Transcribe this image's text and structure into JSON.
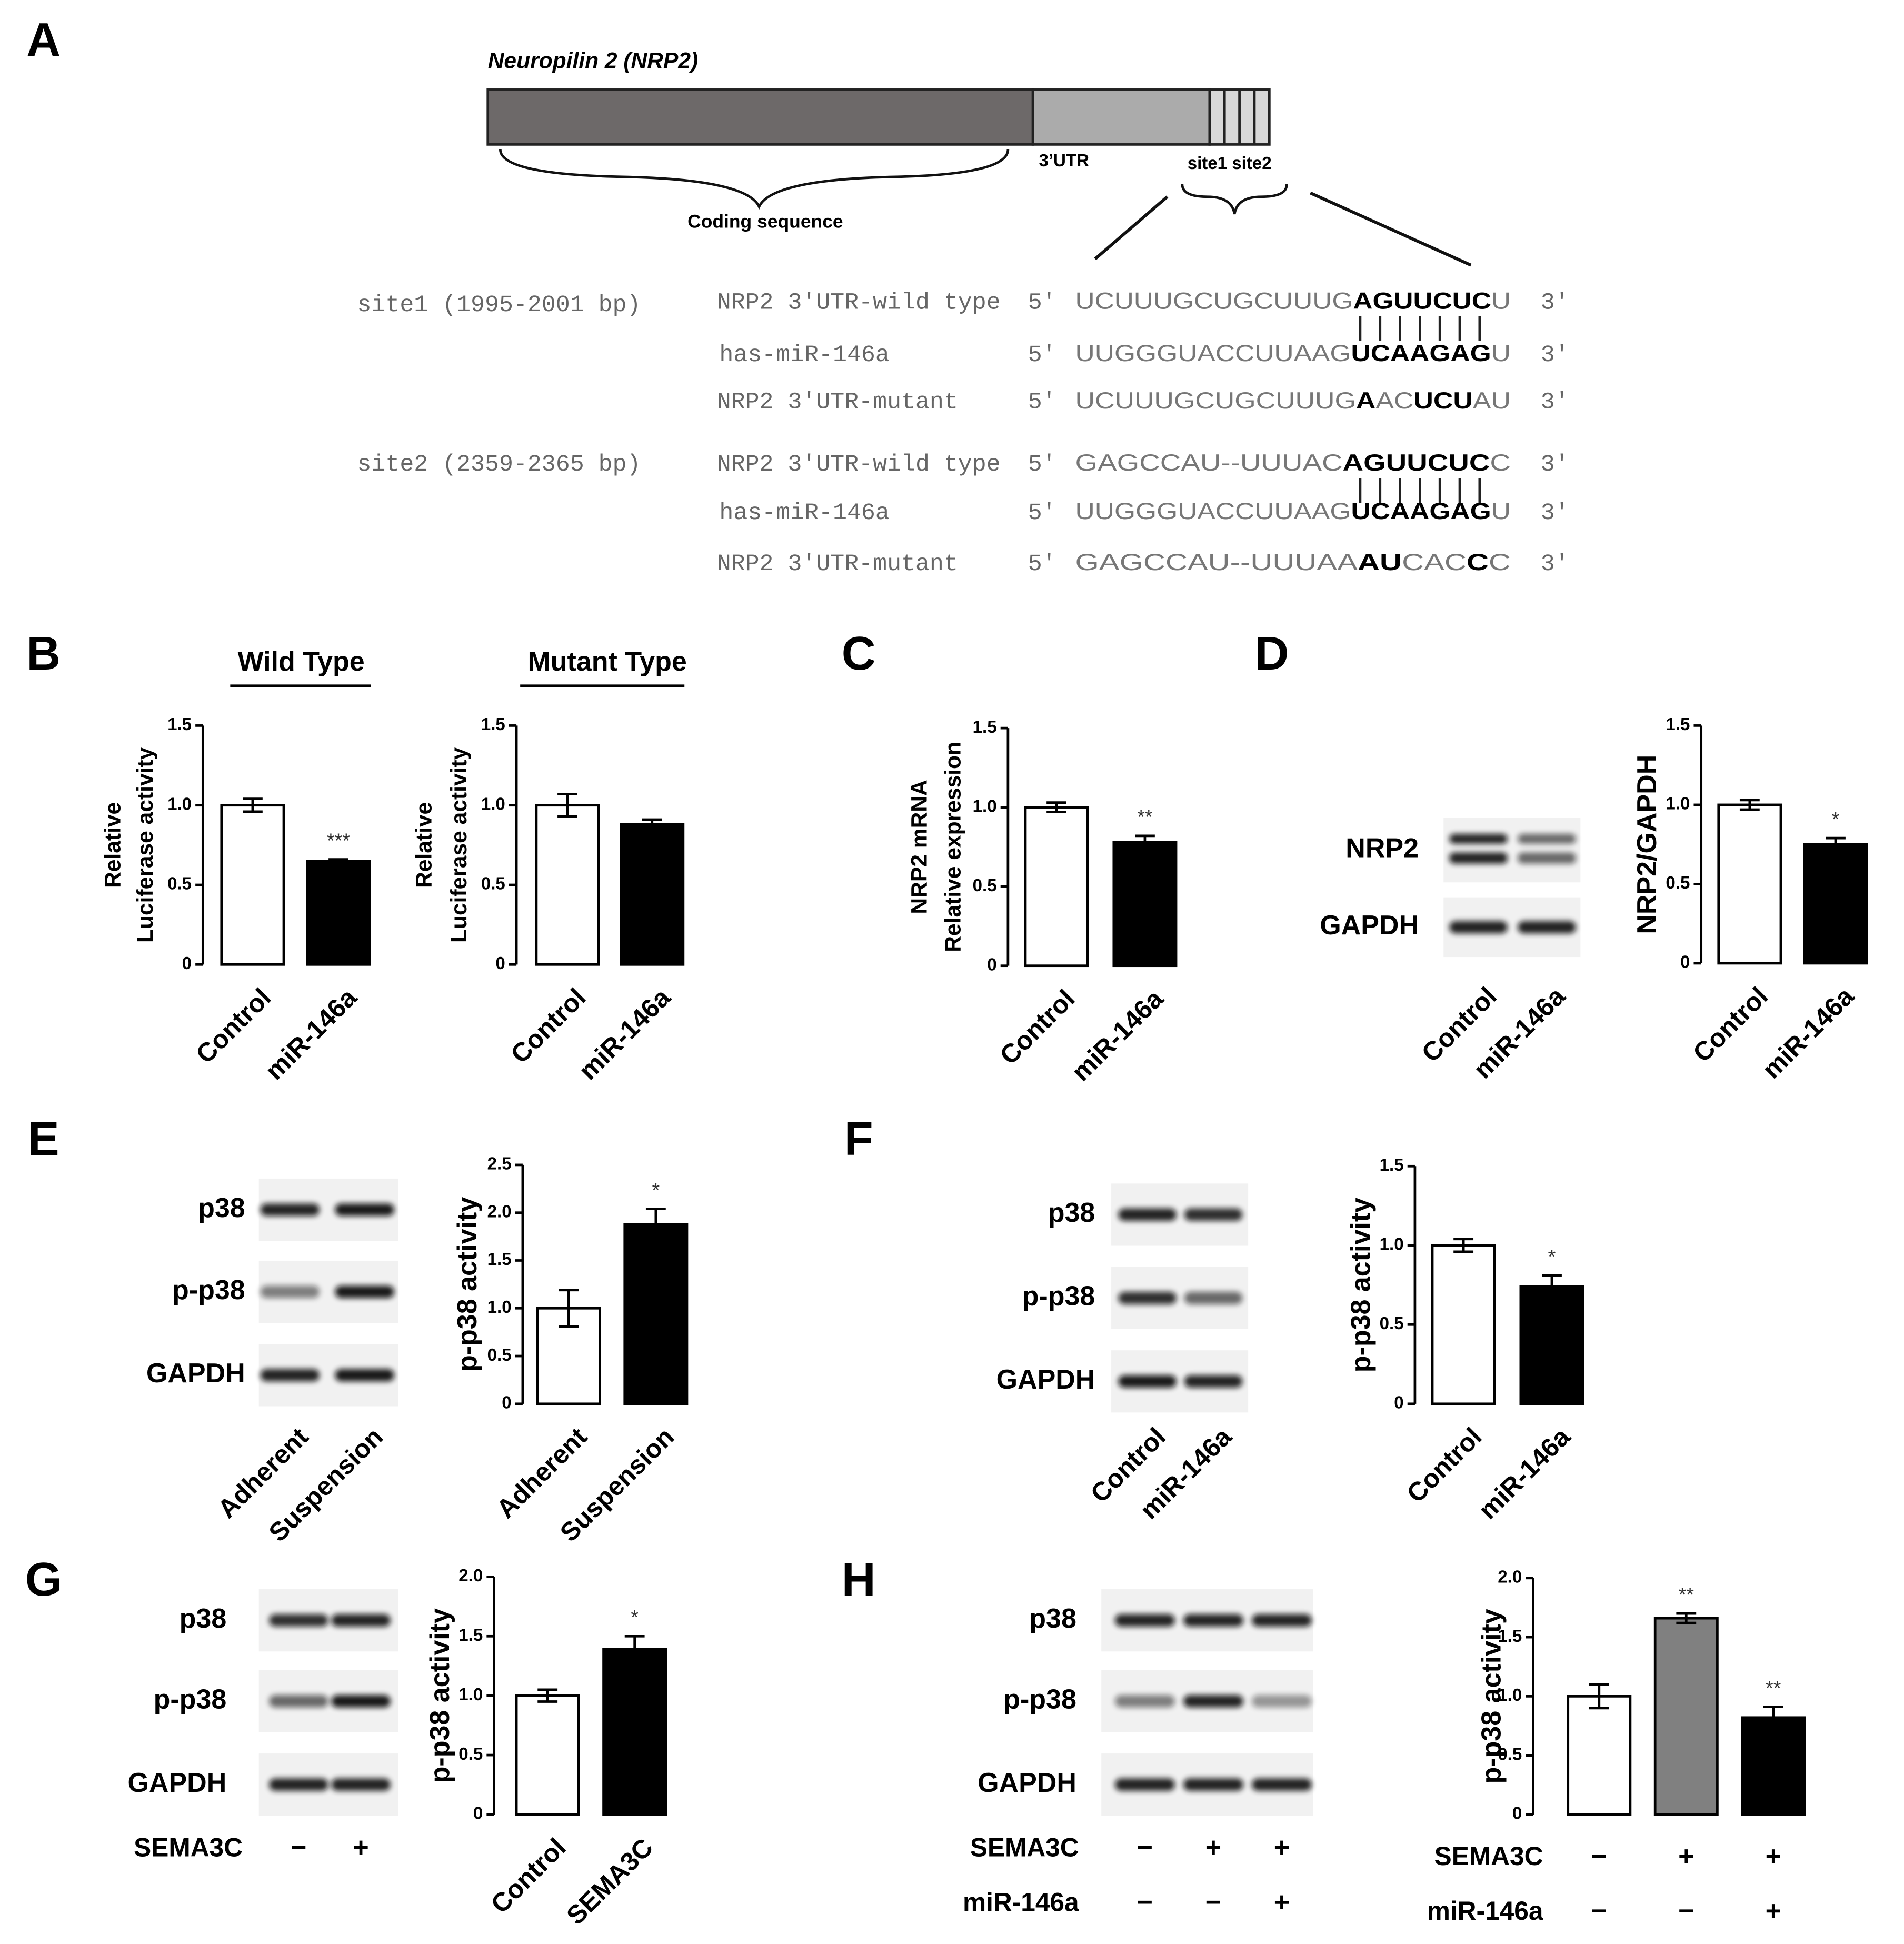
{
  "panels": [
    "A",
    "B",
    "C",
    "D",
    "E",
    "F",
    "G",
    "H"
  ],
  "diagram": {
    "title": "Neuropilin 2 (NRP2)",
    "utr_label": "3’UTR",
    "sites_label": "site1 site2",
    "coding_label": "Coding sequence"
  },
  "sequences": {
    "five_prime": "5′",
    "three_prime": "3′",
    "sites": [
      {
        "label": "site1 (1995-2001 bp)",
        "rows": [
          {
            "name": "NRP2 3′UTR-wild type",
            "segments": [
              "UCUUUGCUGCUUUG",
              "AGUUCUC",
              "U"
            ]
          },
          {
            "name": "has-miR-146a",
            "segments": [
              "UUGGGUACCUUAAG",
              "UCAAGAG",
              "U"
            ]
          },
          {
            "name": "NRP2 3′UTR-mutant",
            "segments": [
              "UCUUUGCUGCUUUG",
              "A",
              "AC",
              "UCU",
              "AU"
            ]
          }
        ]
      },
      {
        "label": "site2 (2359-2365 bp)",
        "rows": [
          {
            "name": "NRP2 3′UTR-wild type",
            "segments": [
              "GAGCCAU--UUUAC",
              "AGUUCUC",
              "C"
            ]
          },
          {
            "name": "has-miR-146a",
            "segments": [
              "UUGGGUACCUUAAG",
              "UCAAGAG",
              "U"
            ]
          },
          {
            "name": "NRP2 3′UTR-mutant",
            "segments": [
              "GAGCCAU--UUUAA",
              "AU",
              "CAC",
              "C",
              "C"
            ]
          }
        ]
      }
    ]
  },
  "blots": [
    {
      "panel": "D",
      "rows": [
        "NRP2",
        "GAPDH"
      ],
      "lanes": [
        "Control",
        "miR-146a"
      ]
    },
    {
      "panel": "E",
      "rows": [
        "p38",
        "p-p38",
        "GAPDH"
      ],
      "lanes": [
        "Adherent",
        "Suspension"
      ]
    },
    {
      "panel": "F",
      "rows": [
        "p38",
        "p-p38",
        "GAPDH"
      ],
      "lanes": [
        "Control",
        "miR-146a"
      ]
    },
    {
      "panel": "G",
      "rows": [
        "p38",
        "p-p38",
        "GAPDH"
      ],
      "conditions": [
        {
          "name": "SEMA3C",
          "values": [
            "−",
            "+"
          ]
        }
      ]
    },
    {
      "panel": "H",
      "rows": [
        "p38",
        "p-p38",
        "GAPDH"
      ],
      "conditions": [
        {
          "name": "SEMA3C",
          "values": [
            "−",
            "+",
            "+"
          ]
        },
        {
          "name": "miR-146a",
          "values": [
            "−",
            "−",
            "+"
          ]
        }
      ]
    }
  ],
  "chart_data": [
    {
      "type": "bar",
      "title": "Wild Type",
      "ylabel": [
        "Relative",
        "Luciferase activity"
      ],
      "categories": [
        "Control",
        "miR-146a"
      ],
      "values": [
        1.0,
        0.65
      ],
      "error": [
        0.04,
        0.01
      ],
      "annotations": [
        null,
        "***"
      ],
      "colors": [
        "#ffffff",
        "#000000"
      ],
      "ylim": [
        0,
        1.5
      ],
      "yticks": [
        0,
        0.5,
        {
          "value": 1,
          "label": "1.0"
        },
        1.5
      ]
    },
    {
      "type": "bar",
      "title": "Mutant Type",
      "ylabel": [
        "Relative",
        "Luciferase activity"
      ],
      "categories": [
        "Control",
        "miR-146a"
      ],
      "values": [
        1.0,
        0.88
      ],
      "error": [
        0.07,
        0.03
      ],
      "annotations": [
        null,
        null
      ],
      "colors": [
        "#ffffff",
        "#000000"
      ],
      "ylim": [
        0,
        1.5
      ],
      "yticks": [
        0,
        0.5,
        {
          "value": 1,
          "label": "1.0"
        },
        1.5
      ]
    },
    {
      "type": "bar",
      "ylabel": [
        "NRP2 mRNA",
        "Relative expression"
      ],
      "categories": [
        "Control",
        "miR-146a"
      ],
      "values": [
        1.0,
        0.78
      ],
      "error": [
        0.03,
        0.04
      ],
      "annotations": [
        null,
        "**"
      ],
      "colors": [
        "#ffffff",
        "#000000"
      ],
      "ylim": [
        0,
        1.5
      ],
      "yticks": [
        0,
        0.5,
        {
          "value": 1,
          "label": "1.0"
        },
        1.5
      ]
    },
    {
      "type": "bar",
      "ylabel": [
        "NRP2/GAPDH"
      ],
      "categories": [
        "Control",
        "miR-146a"
      ],
      "values": [
        1.0,
        0.75
      ],
      "error": [
        0.03,
        0.04
      ],
      "annotations": [
        null,
        "*"
      ],
      "colors": [
        "#ffffff",
        "#000000"
      ],
      "ylim": [
        0,
        1.5
      ],
      "yticks": [
        0,
        0.5,
        {
          "value": 1,
          "label": "1.0"
        },
        1.5
      ]
    },
    {
      "type": "bar",
      "ylabel": [
        "p-p38 activity"
      ],
      "categories": [
        "Adherent",
        "Suspension"
      ],
      "values": [
        1.0,
        1.88
      ],
      "error": [
        0.19,
        0.16
      ],
      "annotations": [
        null,
        "*"
      ],
      "colors": [
        "#ffffff",
        "#000000"
      ],
      "ylim": [
        0,
        2.5
      ],
      "yticks": [
        0,
        0.5,
        {
          "value": 1,
          "label": "1.0"
        },
        1.5,
        {
          "value": 2,
          "label": "2.0"
        },
        2.5
      ]
    },
    {
      "type": "bar",
      "ylabel": [
        "p-p38 activity"
      ],
      "categories": [
        "Control",
        "miR-146a"
      ],
      "values": [
        1.0,
        0.74
      ],
      "error": [
        0.04,
        0.07
      ],
      "annotations": [
        null,
        "*"
      ],
      "colors": [
        "#ffffff",
        "#000000"
      ],
      "ylim": [
        0,
        1.5
      ],
      "yticks": [
        0,
        0.5,
        {
          "value": 1,
          "label": "1.0"
        },
        1.5
      ]
    },
    {
      "type": "bar",
      "ylabel": [
        "p-p38 activity"
      ],
      "categories": [
        "Control",
        "SEMA3C"
      ],
      "values": [
        1.0,
        1.39
      ],
      "error": [
        0.05,
        0.11
      ],
      "annotations": [
        null,
        "*"
      ],
      "colors": [
        "#ffffff",
        "#000000"
      ],
      "ylim": [
        0,
        2.0
      ],
      "yticks": [
        0,
        0.5,
        {
          "value": 1,
          "label": "1.0"
        },
        1.5,
        {
          "value": 2,
          "label": "2.0"
        }
      ]
    },
    {
      "type": "bar",
      "ylabel": [
        "p-p38 activity"
      ],
      "categories": [
        null,
        null,
        null
      ],
      "conditions": [
        {
          "name": "SEMA3C",
          "values": [
            "−",
            "+",
            "+"
          ]
        },
        {
          "name": "miR-146a",
          "values": [
            "−",
            "−",
            "+"
          ]
        }
      ],
      "values": [
        1.0,
        1.66,
        0.82
      ],
      "error": [
        0.1,
        0.04,
        0.09
      ],
      "annotations": [
        null,
        "**",
        "**"
      ],
      "colors": [
        "#ffffff",
        "#808080",
        "#000000"
      ],
      "ylim": [
        0,
        2.0
      ],
      "yticks": [
        0,
        0.5,
        {
          "value": 1,
          "label": "1.0"
        },
        1.5,
        {
          "value": 2,
          "label": "2.0"
        }
      ]
    }
  ]
}
